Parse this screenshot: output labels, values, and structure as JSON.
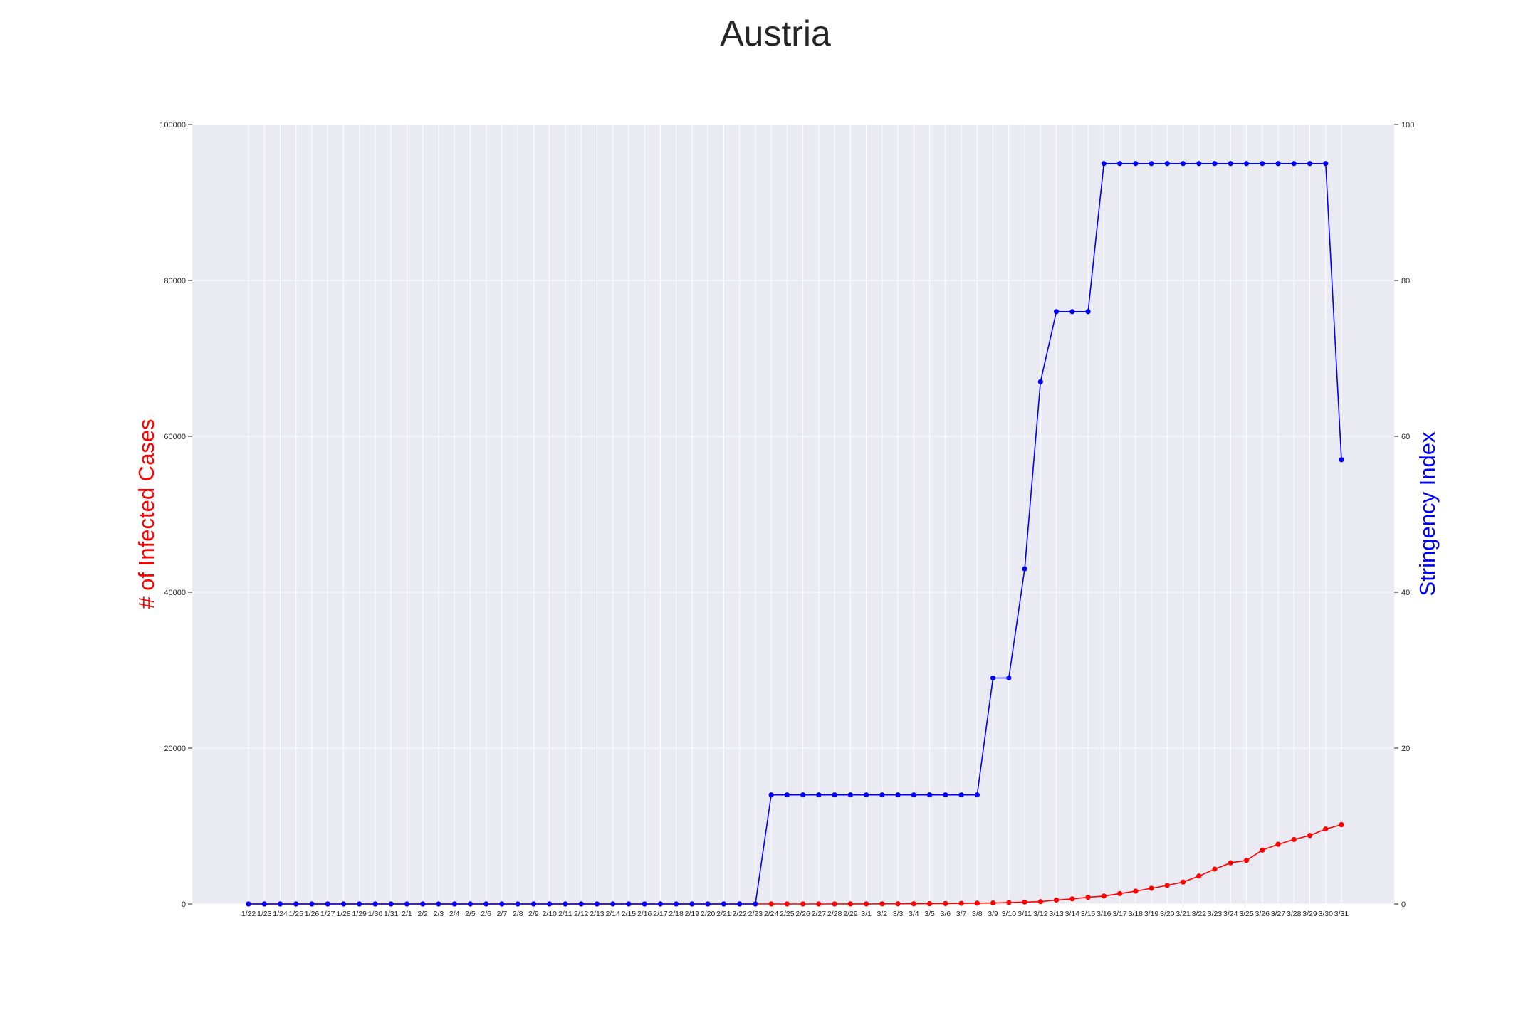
{
  "chart_data": {
    "type": "line",
    "title": "Austria",
    "xlabel": "",
    "ylabel": "# of Infected Cases",
    "ylabel_right": "Stringency Index",
    "ylim": [
      0,
      100000
    ],
    "ylim_right": [
      0,
      100
    ],
    "yticks": [
      "0",
      "20000",
      "40000",
      "60000",
      "80000",
      "100000"
    ],
    "yticks_right": [
      "0",
      "20",
      "40",
      "60",
      "80",
      "100"
    ],
    "grid": true,
    "colors": {
      "cases": "#ff0000",
      "stringency": "#0000ff",
      "background": "#eaeaf2",
      "grid": "#ffffff"
    },
    "x": [
      "1/22",
      "1/23",
      "1/24",
      "1/25",
      "1/26",
      "1/27",
      "1/28",
      "1/29",
      "1/30",
      "1/31",
      "2/1",
      "2/2",
      "2/3",
      "2/4",
      "2/5",
      "2/6",
      "2/7",
      "2/8",
      "2/9",
      "2/10",
      "2/11",
      "2/12",
      "2/13",
      "2/14",
      "2/15",
      "2/16",
      "2/17",
      "2/18",
      "2/19",
      "2/20",
      "2/21",
      "2/22",
      "2/23",
      "2/24",
      "2/25",
      "2/26",
      "2/27",
      "2/28",
      "2/29",
      "3/1",
      "3/2",
      "3/3",
      "3/4",
      "3/5",
      "3/6",
      "3/7",
      "3/8",
      "3/9",
      "3/10",
      "3/11",
      "3/12",
      "3/13",
      "3/14",
      "3/15",
      "3/16",
      "3/17",
      "3/18",
      "3/19",
      "3/20",
      "3/21",
      "3/22",
      "3/23",
      "3/24",
      "3/25",
      "3/26",
      "3/27",
      "3/28",
      "3/29",
      "3/30",
      "3/31"
    ],
    "series": [
      {
        "axis": "left",
        "values": [
          0,
          0,
          0,
          0,
          0,
          0,
          0,
          0,
          0,
          0,
          0,
          0,
          0,
          0,
          0,
          0,
          0,
          0,
          0,
          0,
          0,
          0,
          0,
          0,
          0,
          0,
          0,
          0,
          0,
          0,
          0,
          0,
          0,
          2,
          2,
          3,
          3,
          3,
          9,
          10,
          18,
          24,
          29,
          41,
          55,
          79,
          104,
          131,
          182,
          246,
          302,
          504,
          655,
          860,
          1018,
          1332,
          1646,
          2013,
          2388,
          2814,
          3582,
          4474,
          5283,
          5588,
          6909,
          7657,
          8271,
          8788,
          9618,
          10180
        ]
      },
      {
        "axis": "right",
        "values": [
          0,
          0,
          0,
          0,
          0,
          0,
          0,
          0,
          0,
          0,
          0,
          0,
          0,
          0,
          0,
          0,
          0,
          0,
          0,
          0,
          0,
          0,
          0,
          0,
          0,
          0,
          0,
          0,
          0,
          0,
          0,
          0,
          0,
          14,
          14,
          14,
          14,
          14,
          14,
          14,
          14,
          14,
          14,
          14,
          14,
          14,
          14,
          29,
          29,
          43,
          67,
          76,
          76,
          76,
          95,
          95,
          95,
          95,
          95,
          95,
          95,
          95,
          95,
          95,
          95,
          95,
          95,
          95,
          95,
          57
        ]
      }
    ]
  }
}
